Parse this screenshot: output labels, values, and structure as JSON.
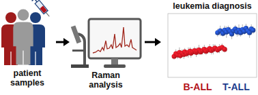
{
  "steps": [
    {
      "lines": [
        "patient",
        "samples"
      ]
    },
    {
      "lines": [
        "Raman",
        "analysis"
      ]
    }
  ],
  "chart_data": {
    "type": "scatter",
    "title": "leukemia diagnosis",
    "tick_labels": false,
    "xlim": [
      0,
      100
    ],
    "ylim": [
      0,
      10
    ],
    "series": [
      {
        "name": "B-ALL",
        "color": "#b3121b",
        "marker": "sphere",
        "x": [
          7,
          9,
          11,
          13,
          14,
          16,
          18,
          19,
          21,
          23,
          25,
          26,
          28,
          30,
          32,
          33,
          35,
          37,
          39,
          41,
          43,
          45,
          47,
          49,
          51,
          53,
          56,
          58,
          61,
          64
        ],
        "values": [
          3.3,
          3.7,
          3.5,
          3.9,
          3.4,
          3.8,
          3.6,
          4.0,
          3.7,
          3.9,
          4.1,
          3.8,
          4.0,
          4.2,
          3.9,
          4.1,
          4.3,
          4.0,
          4.2,
          4.4,
          4.1,
          4.3,
          4.5,
          4.2,
          4.4,
          4.6,
          4.3,
          4.5,
          4.7,
          4.4
        ],
        "error": [
          0.5,
          0.7,
          0.6,
          0.8,
          0.5,
          0.6,
          0.7,
          0.6,
          0.5,
          0.8,
          0.6,
          0.7,
          0.5,
          0.6,
          0.7,
          0.6,
          0.8,
          0.5,
          0.6,
          0.7,
          0.6,
          0.5,
          0.7,
          0.6,
          0.8,
          0.6,
          0.5,
          0.7,
          0.6,
          0.5
        ]
      },
      {
        "name": "T-ALL",
        "color": "#1a3a8c",
        "marker": "sphere",
        "x": [
          56,
          59,
          62,
          64,
          66,
          68,
          70,
          72,
          74,
          76,
          78,
          80,
          82,
          84,
          86,
          88,
          90,
          92,
          94,
          96
        ],
        "values": [
          7.0,
          7.3,
          6.9,
          7.4,
          7.1,
          7.5,
          7.2,
          6.8,
          7.3,
          7.6,
          7.1,
          7.4,
          7.0,
          7.5,
          7.2,
          7.7,
          7.3,
          7.0,
          7.6,
          7.4
        ],
        "error": [
          0.6,
          0.8,
          0.5,
          0.7,
          0.9,
          0.6,
          0.7,
          0.8,
          0.5,
          0.6,
          0.7,
          0.9,
          0.6,
          0.8,
          0.5,
          0.7,
          0.6,
          0.8,
          0.7,
          0.6
        ]
      }
    ]
  }
}
